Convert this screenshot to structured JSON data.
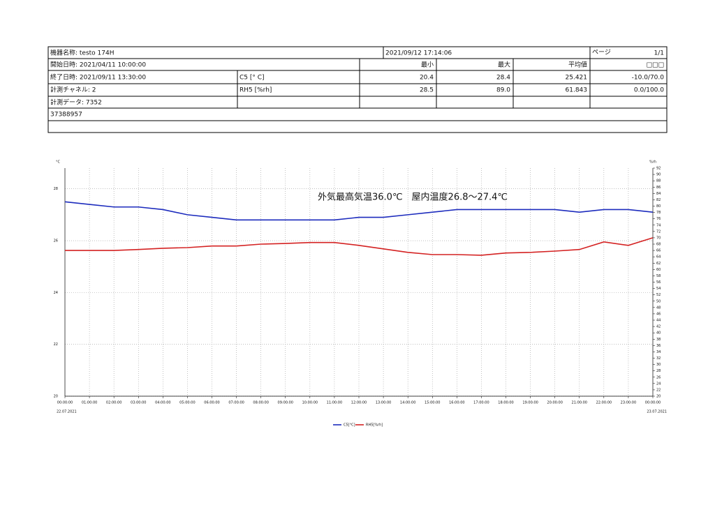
{
  "header": {
    "device": "機器名称: testo 174H",
    "printed": "2021/09/12 17:14:06",
    "page_label": "ページ",
    "page": "1/1"
  },
  "table": {
    "rows": [
      [
        "開始日時: 2021/04/11 10:00:00",
        "最小",
        "最大",
        "平均値",
        "□□□"
      ],
      [
        "終了日時: 2021/09/11 13:30:00",
        "C5 [° C]",
        "20.4",
        "28.4",
        "25.421",
        "-10.0/70.0"
      ],
      [
        "計測チャネル: 2",
        "RH5 [%rh]",
        "28.5",
        "89.0",
        "61.843",
        "0.0/100.0"
      ],
      [
        "計測データ: 7352"
      ],
      [
        "37388957"
      ]
    ]
  },
  "chart_data": {
    "type": "line",
    "annotation": "外気最高気温36.0℃　屋内温度26.8～27.4℃",
    "y_unit": "°C",
    "y2_unit": "%rh",
    "categories": [
      "00:00:00",
      "01:00:00",
      "02:00:00",
      "03:00:00",
      "04:00:00",
      "05:00:00",
      "06:00:00",
      "07:00:00",
      "08:00:00",
      "09:00:00",
      "10:00:00",
      "11:00:00",
      "12:00:00",
      "13:00:00",
      "14:00:00",
      "15:00:00",
      "16:00:00",
      "17:00:00",
      "18:00:00",
      "19:00:00",
      "20:00:00",
      "21:00:00",
      "22:00:00",
      "23:00:00",
      "00:00:00"
    ],
    "x_dates": [
      "22.07.2021",
      "23.07.2021"
    ],
    "series": [
      {
        "name": "C5[°C]",
        "color": "#1c2bbd",
        "values": [
          27.5,
          27.4,
          27.3,
          27.3,
          27.2,
          27.0,
          26.9,
          26.8,
          26.8,
          26.8,
          26.8,
          26.8,
          26.9,
          26.9,
          27.0,
          27.1,
          27.2,
          27.2,
          27.2,
          27.2,
          27.2,
          27.1,
          27.2,
          27.2,
          27.1
        ]
      },
      {
        "name": "RH5[%rh]",
        "color": "#d42222",
        "axis": "y2",
        "values": [
          66.0,
          66.0,
          66.0,
          66.3,
          66.7,
          66.9,
          67.4,
          67.4,
          68.0,
          68.2,
          68.5,
          68.5,
          67.6,
          66.5,
          65.4,
          64.7,
          64.7,
          64.5,
          65.2,
          65.4,
          65.8,
          66.3,
          68.7,
          67.6,
          70.0
        ]
      }
    ],
    "ylim": [
      20,
      28.8
    ],
    "yticks": [
      20,
      22,
      24,
      26,
      28
    ],
    "y2lim": [
      20,
      92
    ],
    "y2ticks": [
      20,
      22,
      24,
      26,
      28,
      30,
      32,
      34,
      36,
      38,
      40,
      42,
      44,
      46,
      48,
      50,
      52,
      54,
      56,
      58,
      60,
      62,
      64,
      66,
      68,
      70,
      72,
      74,
      76,
      78,
      80,
      82,
      84,
      86,
      88,
      90,
      92
    ],
    "grid": true
  }
}
